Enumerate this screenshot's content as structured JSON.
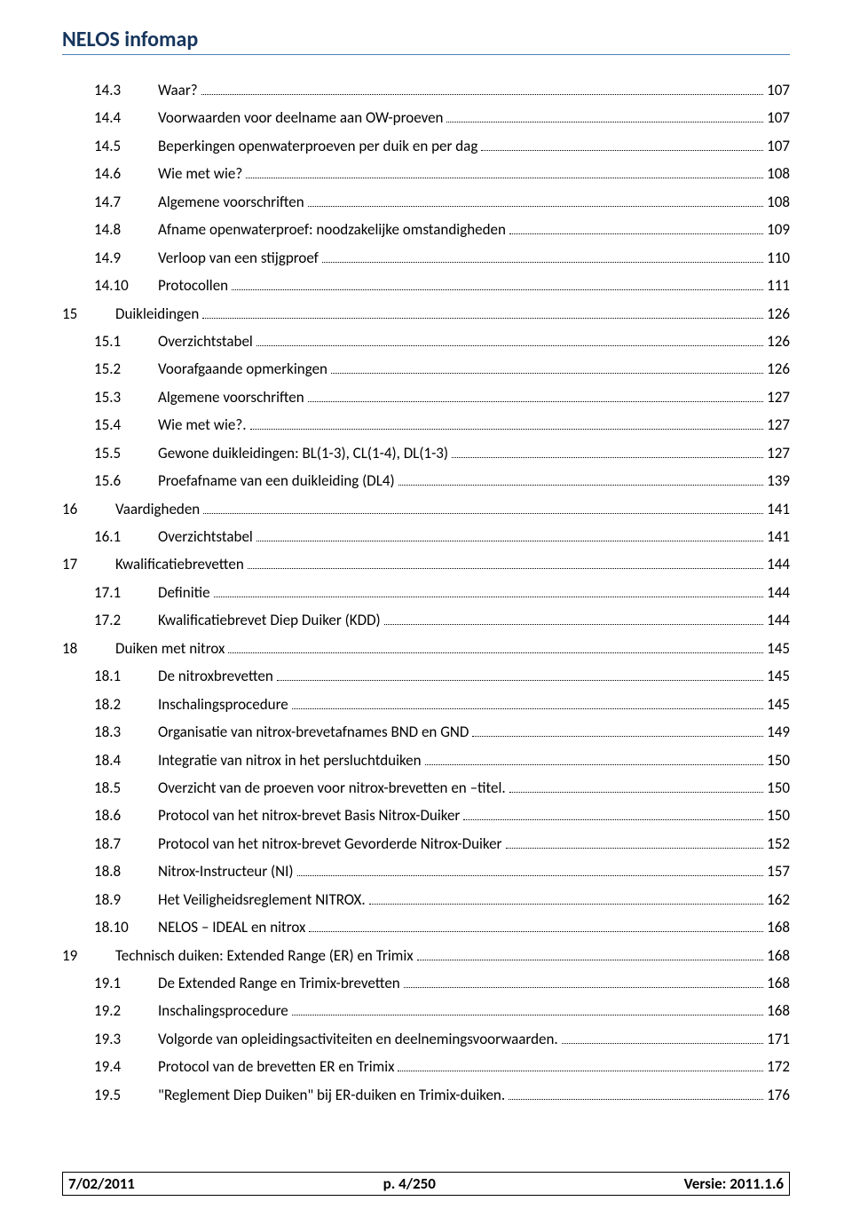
{
  "header": {
    "title": "NELOS infomap"
  },
  "toc": {
    "entries": [
      {
        "level": 2,
        "num": "14.3",
        "label": "Waar?",
        "page": "107"
      },
      {
        "level": 2,
        "num": "14.4",
        "label": "Voorwaarden voor deelname aan OW-proeven",
        "page": "107"
      },
      {
        "level": 2,
        "num": "14.5",
        "label": "Beperkingen openwaterproeven per duik en per dag",
        "page": "107"
      },
      {
        "level": 2,
        "num": "14.6",
        "label": "Wie met wie?",
        "page": "108"
      },
      {
        "level": 2,
        "num": "14.7",
        "label": "Algemene voorschriften",
        "page": "108"
      },
      {
        "level": 2,
        "num": "14.8",
        "label": "Afname openwaterproef: noodzakelijke omstandigheden",
        "page": "109"
      },
      {
        "level": 2,
        "num": "14.9",
        "label": "Verloop van een stijgproef",
        "page": "110"
      },
      {
        "level": 2,
        "num": "14.10",
        "label": "Protocollen",
        "page": "111"
      },
      {
        "level": 1,
        "num": "15",
        "label": "Duikleidingen",
        "page": "126"
      },
      {
        "level": 2,
        "num": "15.1",
        "label": "Overzichtstabel",
        "page": "126"
      },
      {
        "level": 2,
        "num": "15.2",
        "label": "Voorafgaande opmerkingen",
        "page": "126"
      },
      {
        "level": 2,
        "num": "15.3",
        "label": "Algemene voorschriften",
        "page": "127"
      },
      {
        "level": 2,
        "num": "15.4",
        "label": "Wie met wie?.",
        "page": "127"
      },
      {
        "level": 2,
        "num": "15.5",
        "label": "Gewone duikleidingen: BL(1-3), CL(1-4), DL(1-3)",
        "page": "127"
      },
      {
        "level": 2,
        "num": "15.6",
        "label": "Proefafname van een duikleiding (DL4)",
        "page": "139"
      },
      {
        "level": 1,
        "num": "16",
        "label": "Vaardigheden",
        "page": "141"
      },
      {
        "level": 2,
        "num": "16.1",
        "label": "Overzichtstabel",
        "page": "141"
      },
      {
        "level": 1,
        "num": "17",
        "label": "Kwalificatiebrevetten",
        "page": "144"
      },
      {
        "level": 2,
        "num": "17.1",
        "label": "Definitie",
        "page": "144"
      },
      {
        "level": 2,
        "num": "17.2",
        "label": "Kwalificatiebrevet Diep Duiker (KDD)",
        "page": "144"
      },
      {
        "level": 1,
        "num": "18",
        "label": "Duiken met nitrox",
        "page": "145"
      },
      {
        "level": 2,
        "num": "18.1",
        "label": "De nitroxbrevetten",
        "page": "145"
      },
      {
        "level": 2,
        "num": "18.2",
        "label": "Inschalingsprocedure",
        "page": "145"
      },
      {
        "level": 2,
        "num": "18.3",
        "label": "Organisatie van nitrox-brevetafnames BND en GND",
        "page": "149"
      },
      {
        "level": 2,
        "num": "18.4",
        "label": "Integratie van nitrox in het persluchtduiken",
        "page": "150"
      },
      {
        "level": 2,
        "num": "18.5",
        "label": "Overzicht van de proeven voor nitrox-brevetten en –titel.",
        "page": "150"
      },
      {
        "level": 2,
        "num": "18.6",
        "label": "Protocol van het nitrox-brevet Basis Nitrox-Duiker",
        "page": "150"
      },
      {
        "level": 2,
        "num": "18.7",
        "label": "Protocol van het nitrox-brevet Gevorderde Nitrox-Duiker",
        "page": "152"
      },
      {
        "level": 2,
        "num": "18.8",
        "label": "Nitrox-Instructeur (NI)",
        "page": "157"
      },
      {
        "level": 2,
        "num": "18.9",
        "label": "Het Veiligheidsreglement NITROX.",
        "page": "162"
      },
      {
        "level": 2,
        "num": "18.10",
        "label": "NELOS – IDEAL en nitrox",
        "page": "168"
      },
      {
        "level": 1,
        "num": "19",
        "label": "Technisch duiken: Extended Range (ER) en Trimix",
        "page": "168"
      },
      {
        "level": 2,
        "num": "19.1",
        "label": "De Extended Range en Trimix-brevetten",
        "page": "168"
      },
      {
        "level": 2,
        "num": "19.2",
        "label": "Inschalingsprocedure",
        "page": "168"
      },
      {
        "level": 2,
        "num": "19.3",
        "label": "Volgorde van opleidingsactiviteiten en deelnemingsvoorwaarden.",
        "page": "171"
      },
      {
        "level": 2,
        "num": "19.4",
        "label": "Protocol van de brevetten ER en Trimix",
        "page": "172"
      },
      {
        "level": 2,
        "num": "19.5",
        "label": "\"Reglement Diep Duiken\" bij ER-duiken en Trimix-duiken.",
        "page": "176"
      }
    ]
  },
  "footer": {
    "date": "7/02/2011",
    "page": "p. 4/250",
    "version": "Versie: 2011.1.6"
  }
}
